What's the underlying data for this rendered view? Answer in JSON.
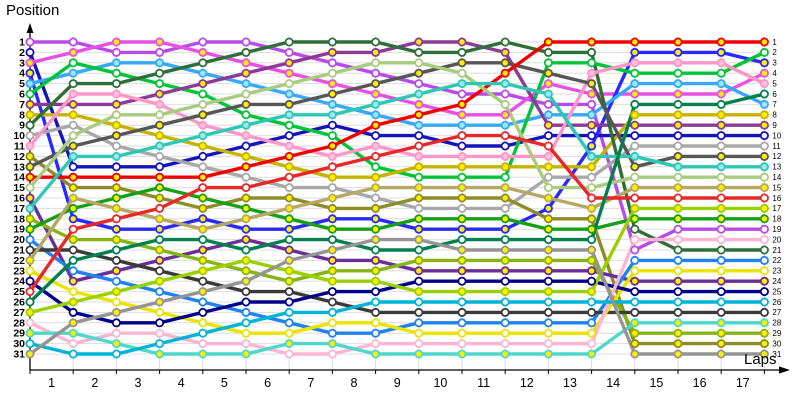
{
  "title": "Position",
  "xlabel": "Laps",
  "chart_data": {
    "type": "line",
    "title": "Position",
    "ylabel": "Position",
    "xlabel": "Laps",
    "y_inverted": true,
    "grid": true,
    "legend_position": "none",
    "x_tick_labels": [
      "1",
      "2",
      "3",
      "4",
      "5",
      "6",
      "7",
      "8",
      "9",
      "10",
      "11",
      "12",
      "13",
      "14",
      "15",
      "16",
      "17"
    ],
    "left_position_labels": [
      "1",
      "2",
      "3",
      "4",
      "5",
      "6",
      "7",
      "8",
      "9",
      "10",
      "11",
      "12",
      "13",
      "14",
      "15",
      "16",
      "17",
      "18",
      "19",
      "20",
      "21",
      "22",
      "23",
      "24",
      "25",
      "26",
      "27",
      "28",
      "29",
      "30",
      "31"
    ],
    "right_position_labels": [
      "1",
      "2",
      "3",
      "4",
      "5",
      "6",
      "7",
      "8",
      "9",
      "10",
      "11",
      "12",
      "13",
      "14",
      "15",
      "16",
      "17",
      "18",
      "19",
      "20",
      "21",
      "22",
      "23",
      "24",
      "25",
      "26",
      "27",
      "28",
      "29",
      "30",
      "31"
    ],
    "laps": [
      0,
      1,
      2,
      3,
      4,
      5,
      6,
      7,
      8,
      9,
      10,
      11,
      12,
      13,
      14,
      15,
      16,
      17
    ],
    "grid_color": "#dcdcdc",
    "axis_color": "#000000",
    "series": [
      {
        "start_position": 1,
        "final_position": 19,
        "color": "#b84ae8",
        "marker_fill": "#ffffff",
        "positions": [
          1,
          1,
          2,
          2,
          1,
          1,
          2,
          3,
          4,
          5,
          6,
          6,
          7,
          7,
          21,
          19,
          19,
          19
        ]
      },
      {
        "start_position": 2,
        "final_position": 10,
        "color": "#1414b8",
        "marker_fill": "#ffffff",
        "positions": [
          2,
          13,
          13,
          13,
          12,
          11,
          10,
          9,
          10,
          10,
          11,
          11,
          10,
          10,
          10,
          10,
          10,
          10
        ]
      },
      {
        "start_position": 3,
        "final_position": 4,
        "color": "#e650e6",
        "marker_fill": "#ffee00",
        "positions": [
          3,
          2,
          1,
          1,
          2,
          3,
          4,
          5,
          6,
          7,
          8,
          8,
          5,
          6,
          6,
          6,
          6,
          4
        ]
      },
      {
        "start_position": 4,
        "final_position": 3,
        "color": "#2828ff",
        "marker_fill": "#ffee00",
        "positions": [
          4,
          18,
          19,
          19,
          18,
          19,
          19,
          18,
          18,
          19,
          19,
          19,
          17,
          11,
          2,
          2,
          2,
          3
        ]
      },
      {
        "start_position": 5,
        "final_position": 7,
        "color": "#38a8f8",
        "marker_fill": "#9ce8f0",
        "positions": [
          5,
          4,
          3,
          3,
          4,
          5,
          6,
          7,
          8,
          9,
          9,
          9,
          8,
          8,
          5,
          5,
          5,
          7
        ]
      },
      {
        "start_position": 6,
        "final_position": 2,
        "color": "#00c438",
        "marker_fill": "#ffffff",
        "positions": [
          6,
          3,
          4,
          5,
          6,
          8,
          9,
          10,
          13,
          14,
          14,
          14,
          3,
          3,
          4,
          4,
          4,
          2
        ]
      },
      {
        "start_position": 7,
        "final_position": 9,
        "color": "#8c3a96",
        "marker_fill": "#ffee00",
        "positions": [
          7,
          7,
          7,
          6,
          5,
          4,
          3,
          2,
          2,
          1,
          1,
          2,
          9,
          9,
          9,
          9,
          9,
          9
        ]
      },
      {
        "start_position": 8,
        "final_position": 8,
        "color": "#c4b400",
        "marker_fill": "#ffee00",
        "positions": [
          8,
          8,
          9,
          10,
          11,
          12,
          13,
          14,
          14,
          13,
          13,
          13,
          13,
          13,
          8,
          8,
          8,
          8
        ]
      },
      {
        "start_position": 9,
        "final_position": 21,
        "color": "#2e6e38",
        "marker_fill": "#ffffff",
        "positions": [
          9,
          5,
          5,
          4,
          3,
          2,
          1,
          1,
          1,
          2,
          2,
          1,
          2,
          2,
          19,
          21,
          21,
          21
        ]
      },
      {
        "start_position": 10,
        "final_position": 11,
        "color": "#a8a8a8",
        "marker_fill": "#ffffff",
        "positions": [
          10,
          9,
          11,
          12,
          13,
          14,
          15,
          15,
          16,
          17,
          17,
          17,
          14,
          14,
          11,
          11,
          11,
          11
        ]
      },
      {
        "start_position": 11,
        "final_position": 5,
        "color": "#ff96c8",
        "marker_fill": "#ffc0dc",
        "positions": [
          11,
          6,
          6,
          7,
          9,
          10,
          11,
          12,
          11,
          12,
          12,
          12,
          12,
          4,
          3,
          3,
          3,
          5
        ]
      },
      {
        "start_position": 12,
        "final_position": 30,
        "color": "#8c8c28",
        "marker_fill": "#ffee00",
        "positions": [
          12,
          15,
          15,
          16,
          17,
          16,
          16,
          17,
          17,
          16,
          16,
          16,
          18,
          18,
          30,
          30,
          30,
          30
        ]
      },
      {
        "start_position": 13,
        "final_position": 12,
        "color": "#565656",
        "marker_fill": "#ffee00",
        "positions": [
          13,
          11,
          10,
          9,
          8,
          7,
          7,
          6,
          5,
          4,
          3,
          3,
          4,
          5,
          13,
          12,
          12,
          12
        ]
      },
      {
        "start_position": 14,
        "final_position": 1,
        "color": "#f00000",
        "marker_fill": "#ffee00",
        "positions": [
          14,
          14,
          14,
          14,
          14,
          13,
          12,
          11,
          9,
          8,
          7,
          4,
          1,
          1,
          1,
          1,
          1,
          1
        ]
      },
      {
        "start_position": 15,
        "final_position": 14,
        "color": "#a8cc7e",
        "marker_fill": "#ffffff",
        "positions": [
          15,
          10,
          8,
          8,
          7,
          6,
          5,
          4,
          3,
          3,
          4,
          7,
          15,
          15,
          14,
          14,
          14,
          14
        ]
      },
      {
        "start_position": 16,
        "final_position": 24,
        "color": "#6a2e96",
        "marker_fill": "#ffee00",
        "positions": [
          16,
          24,
          23,
          22,
          21,
          20,
          21,
          22,
          22,
          23,
          23,
          23,
          23,
          23,
          24,
          24,
          24,
          24
        ]
      },
      {
        "start_position": 17,
        "final_position": 13,
        "color": "#2cc8b4",
        "marker_fill": "#9ce8f0",
        "positions": [
          17,
          12,
          12,
          11,
          10,
          9,
          8,
          8,
          7,
          6,
          5,
          5,
          6,
          12,
          12,
          13,
          13,
          13
        ]
      },
      {
        "start_position": 18,
        "final_position": 29,
        "color": "#86b414",
        "marker_fill": "#ffee00",
        "positions": [
          18,
          20,
          20,
          21,
          22,
          23,
          24,
          23,
          23,
          22,
          22,
          22,
          22,
          22,
          29,
          29,
          29,
          29
        ]
      },
      {
        "start_position": 19,
        "final_position": 18,
        "color": "#16a016",
        "marker_fill": "#ffee00",
        "positions": [
          19,
          17,
          16,
          15,
          16,
          17,
          18,
          19,
          19,
          18,
          18,
          18,
          19,
          19,
          18,
          18,
          18,
          18
        ]
      },
      {
        "start_position": 20,
        "final_position": 22,
        "color": "#1e82f0",
        "marker_fill": "#ffffff",
        "positions": [
          20,
          23,
          24,
          25,
          26,
          27,
          28,
          29,
          29,
          28,
          28,
          28,
          28,
          28,
          22,
          22,
          22,
          22
        ]
      },
      {
        "start_position": 21,
        "final_position": 27,
        "color": "#3a3a3a",
        "marker_fill": "#ffffff",
        "positions": [
          21,
          21,
          22,
          23,
          24,
          25,
          25,
          26,
          27,
          27,
          27,
          27,
          27,
          27,
          27,
          27,
          27,
          27
        ]
      },
      {
        "start_position": 22,
        "final_position": 15,
        "color": "#b4a864",
        "marker_fill": "#ffee00",
        "positions": [
          22,
          16,
          17,
          18,
          19,
          18,
          17,
          16,
          15,
          15,
          15,
          15,
          16,
          17,
          15,
          15,
          15,
          15
        ]
      },
      {
        "start_position": 23,
        "final_position": 23,
        "color": "#e8e400",
        "marker_fill": "#ffffff",
        "positions": [
          23,
          25,
          26,
          27,
          28,
          29,
          29,
          28,
          28,
          29,
          29,
          29,
          29,
          29,
          23,
          23,
          23,
          23
        ]
      },
      {
        "start_position": 24,
        "final_position": 25,
        "color": "#000088",
        "marker_fill": "#ffffff",
        "positions": [
          24,
          27,
          28,
          28,
          27,
          26,
          26,
          25,
          25,
          24,
          24,
          24,
          24,
          24,
          25,
          25,
          25,
          25
        ]
      },
      {
        "start_position": 25,
        "final_position": 16,
        "color": "#e62828",
        "marker_fill": "#ffffff",
        "positions": [
          25,
          19,
          18,
          17,
          15,
          15,
          14,
          13,
          12,
          11,
          10,
          10,
          11,
          16,
          16,
          16,
          16,
          16
        ]
      },
      {
        "start_position": 26,
        "final_position": 6,
        "color": "#00804c",
        "marker_fill": "#ffffff",
        "positions": [
          26,
          22,
          21,
          20,
          20,
          21,
          20,
          20,
          21,
          21,
          20,
          20,
          20,
          20,
          7,
          7,
          7,
          6
        ]
      },
      {
        "start_position": 27,
        "final_position": 17,
        "color": "#9ad000",
        "marker_fill": "#ffee00",
        "positions": [
          27,
          26,
          25,
          24,
          23,
          22,
          23,
          24,
          24,
          25,
          25,
          25,
          25,
          25,
          17,
          17,
          17,
          17
        ]
      },
      {
        "start_position": 28,
        "final_position": 20,
        "color": "#ffb4d4",
        "marker_fill": "#ffffff",
        "positions": [
          28,
          30,
          29,
          29,
          30,
          30,
          31,
          31,
          30,
          30,
          30,
          30,
          30,
          30,
          20,
          20,
          20,
          20
        ]
      },
      {
        "start_position": 29,
        "final_position": 28,
        "color": "#4cd8cc",
        "marker_fill": "#ffee00",
        "positions": [
          29,
          29,
          30,
          31,
          31,
          31,
          30,
          30,
          31,
          31,
          31,
          31,
          31,
          31,
          28,
          28,
          28,
          28
        ]
      },
      {
        "start_position": 30,
        "final_position": 26,
        "color": "#00b4d8",
        "marker_fill": "#ffffff",
        "positions": [
          30,
          31,
          31,
          30,
          29,
          28,
          27,
          27,
          26,
          26,
          26,
          26,
          26,
          26,
          26,
          26,
          26,
          26
        ]
      },
      {
        "start_position": 31,
        "final_position": 31,
        "color": "#949494",
        "marker_fill": "#ffee00",
        "positions": [
          31,
          28,
          27,
          26,
          25,
          24,
          22,
          21,
          20,
          20,
          21,
          21,
          21,
          21,
          31,
          31,
          31,
          31
        ]
      }
    ]
  }
}
